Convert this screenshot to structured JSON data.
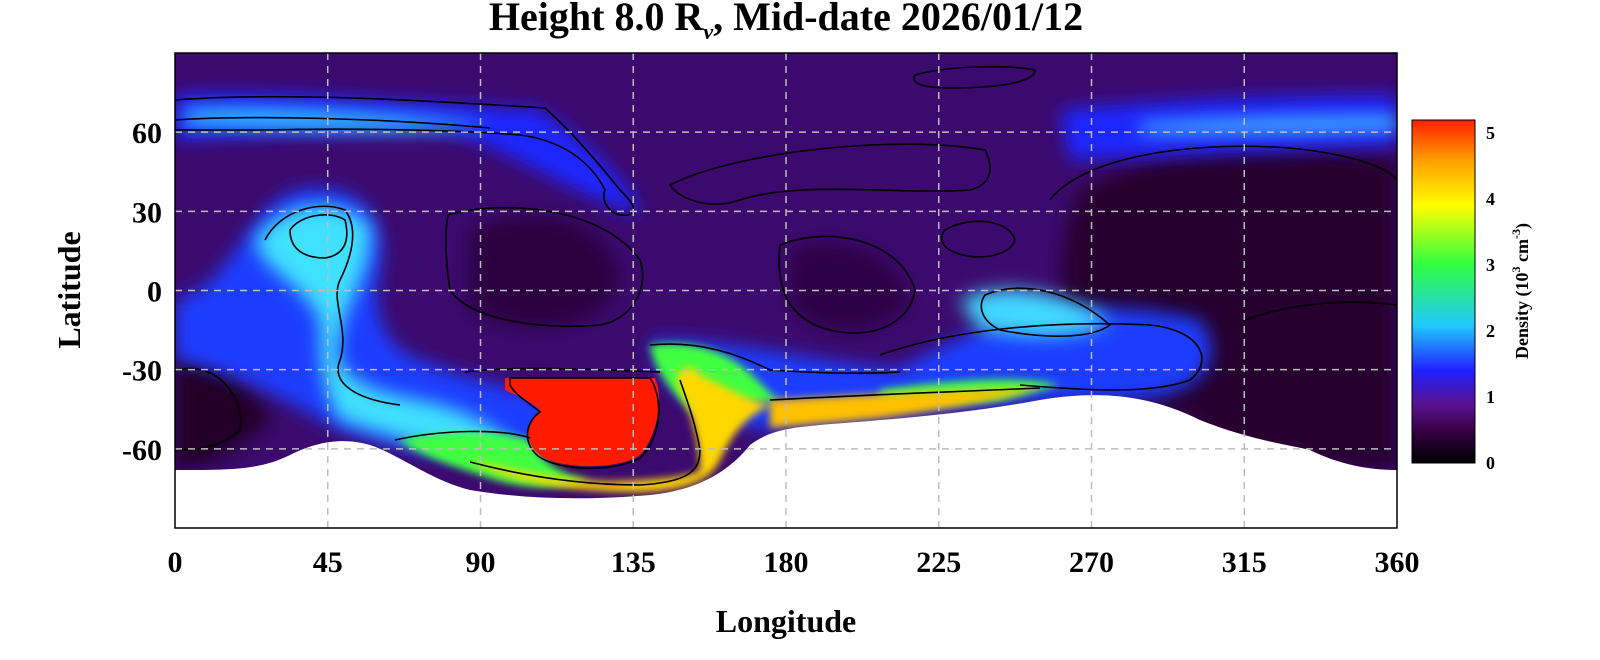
{
  "chart_data": {
    "type": "heatmap",
    "title": {
      "prefix": "Height 8.0 R",
      "subscript": "v",
      "suffix": ", Mid-date 2026/01/12"
    },
    "xlabel": "Longitude",
    "ylabel": "Latitude",
    "xlim": [
      0,
      360
    ],
    "ylim": [
      -90,
      90
    ],
    "x_ticks": [
      0,
      45,
      90,
      135,
      180,
      225,
      270,
      315,
      360
    ],
    "y_ticks": [
      60,
      30,
      0,
      -30,
      -60
    ],
    "grid": true,
    "colorbar": {
      "label_main": "Density (10",
      "label_sup1": "3",
      "label_mid": " cm",
      "label_sup2": "-3",
      "label_end": ")",
      "range": [
        0,
        5.2
      ],
      "ticks": [
        0,
        1,
        2,
        3,
        4,
        5
      ],
      "placement": "right",
      "colors": [
        "#000000",
        "#3a0048",
        "#5a1290",
        "#2020ff",
        "#20c8ff",
        "#30ff40",
        "#ffff00",
        "#ffa000",
        "#ff2000"
      ]
    },
    "field_features": [
      {
        "name": "background",
        "lon": 180,
        "lat": 0,
        "density": 0.7
      },
      {
        "name": "red-core",
        "lon": 120,
        "lat": -48,
        "density": 5.2
      },
      {
        "name": "yellow-ridge",
        "lon": 165,
        "lat": -45,
        "density": 4.1
      },
      {
        "name": "yellow-band",
        "lon": 210,
        "lat": -45,
        "density": 4.2
      },
      {
        "name": "green-arc",
        "lon": 90,
        "lat": -65,
        "density": 3.3
      },
      {
        "name": "cyan-tongue",
        "lon": 45,
        "lat": 18,
        "density": 2.6
      },
      {
        "name": "north-band",
        "lon": 40,
        "lat": 66,
        "density": 1.9
      },
      {
        "name": "north-band-east",
        "lon": 330,
        "lat": 65,
        "density": 1.8
      },
      {
        "name": "mid-cyan",
        "lon": 255,
        "lat": -8,
        "density": 2.1
      },
      {
        "name": "dark-east",
        "lon": 325,
        "lat": 22,
        "density": 0.2
      },
      {
        "name": "dark-south-west",
        "lon": 15,
        "lat": -45,
        "density": 0.3
      }
    ]
  }
}
